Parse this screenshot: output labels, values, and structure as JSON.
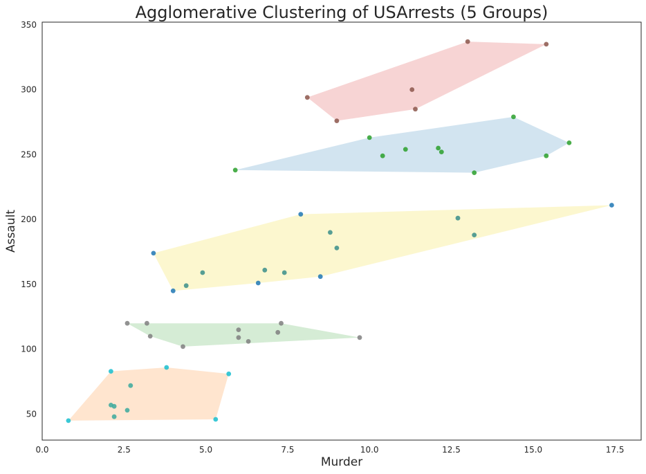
{
  "chart_data": {
    "type": "scatter",
    "title": "Agglomerative Clustering of USArrests (5 Groups)",
    "xlabel": "Murder",
    "ylabel": "Assault",
    "xlim": [
      0,
      18.3
    ],
    "ylim": [
      30,
      352
    ],
    "xticks": [
      0.0,
      2.5,
      5.0,
      7.5,
      10.0,
      12.5,
      15.0,
      17.5
    ],
    "xtick_labels": [
      "0.0",
      "2.5",
      "5.0",
      "7.5",
      "10.0",
      "12.5",
      "15.0",
      "17.5"
    ],
    "yticks": [
      50,
      100,
      150,
      200,
      250,
      300,
      350
    ],
    "ytick_labels": [
      "50",
      "100",
      "150",
      "200",
      "250",
      "300",
      "350"
    ],
    "grid": false,
    "hull_opacity": 0.2,
    "point_opacity": 0.85,
    "series": [
      {
        "hull_color": "#d62728",
        "points": [
          {
            "x": 13.0,
            "y": 337,
            "color": "#8c564b"
          },
          {
            "x": 15.4,
            "y": 335,
            "color": "#8c564b"
          },
          {
            "x": 11.3,
            "y": 300,
            "color": "#8c564b"
          },
          {
            "x": 8.1,
            "y": 294,
            "color": "#8c564b"
          },
          {
            "x": 11.4,
            "y": 285,
            "color": "#8c564b"
          },
          {
            "x": 9.0,
            "y": 276,
            "color": "#8c564b"
          }
        ]
      },
      {
        "hull_color": "#1f77b4",
        "points": [
          {
            "x": 14.4,
            "y": 279,
            "color": "#2ca02c"
          },
          {
            "x": 10.0,
            "y": 263,
            "color": "#2ca02c"
          },
          {
            "x": 16.1,
            "y": 259,
            "color": "#2ca02c"
          },
          {
            "x": 12.1,
            "y": 255,
            "color": "#2ca02c"
          },
          {
            "x": 11.1,
            "y": 254,
            "color": "#2ca02c"
          },
          {
            "x": 12.2,
            "y": 252,
            "color": "#2ca02c"
          },
          {
            "x": 10.4,
            "y": 249,
            "color": "#2ca02c"
          },
          {
            "x": 15.4,
            "y": 249,
            "color": "#2ca02c"
          },
          {
            "x": 5.9,
            "y": 238,
            "color": "#2ca02c"
          },
          {
            "x": 13.2,
            "y": 236,
            "color": "#2ca02c"
          }
        ]
      },
      {
        "hull_color": "#f2d50f",
        "points": [
          {
            "x": 17.4,
            "y": 211,
            "color": "#1f77b4"
          },
          {
            "x": 7.9,
            "y": 204,
            "color": "#1f77b4"
          },
          {
            "x": 12.7,
            "y": 201,
            "color": "#3a8e8a"
          },
          {
            "x": 8.8,
            "y": 190,
            "color": "#3a8e8a"
          },
          {
            "x": 13.2,
            "y": 188,
            "color": "#3a8e8a"
          },
          {
            "x": 9.0,
            "y": 178,
            "color": "#3a8e8a"
          },
          {
            "x": 3.4,
            "y": 174,
            "color": "#1f77b4"
          },
          {
            "x": 6.8,
            "y": 161,
            "color": "#3a8e8a"
          },
          {
            "x": 4.9,
            "y": 159,
            "color": "#3a8e8a"
          },
          {
            "x": 7.4,
            "y": 159,
            "color": "#3a8e8a"
          },
          {
            "x": 8.5,
            "y": 156,
            "color": "#1f77b4"
          },
          {
            "x": 6.6,
            "y": 151,
            "color": "#1f77b4"
          },
          {
            "x": 4.4,
            "y": 149,
            "color": "#3a8e8a"
          },
          {
            "x": 4.0,
            "y": 145,
            "color": "#1f77b4"
          }
        ]
      },
      {
        "hull_color": "#2ca02c",
        "points": [
          {
            "x": 2.6,
            "y": 120,
            "color": "#7f7f7f"
          },
          {
            "x": 3.2,
            "y": 120,
            "color": "#7f7f7f"
          },
          {
            "x": 7.3,
            "y": 120,
            "color": "#7f7f7f"
          },
          {
            "x": 6.0,
            "y": 115,
            "color": "#7f7f7f"
          },
          {
            "x": 7.2,
            "y": 113,
            "color": "#7f7f7f"
          },
          {
            "x": 3.3,
            "y": 110,
            "color": "#7f7f7f"
          },
          {
            "x": 6.0,
            "y": 109,
            "color": "#7f7f7f"
          },
          {
            "x": 9.7,
            "y": 109,
            "color": "#7f7f7f"
          },
          {
            "x": 6.3,
            "y": 106,
            "color": "#7f7f7f"
          },
          {
            "x": 4.3,
            "y": 102,
            "color": "#7f7f7f"
          }
        ]
      },
      {
        "hull_color": "#ff7f0e",
        "points": [
          {
            "x": 3.8,
            "y": 86,
            "color": "#17becf"
          },
          {
            "x": 2.1,
            "y": 83,
            "color": "#17becf"
          },
          {
            "x": 5.7,
            "y": 81,
            "color": "#17becf"
          },
          {
            "x": 2.7,
            "y": 72,
            "color": "#3ba99c"
          },
          {
            "x": 2.1,
            "y": 57,
            "color": "#3ba99c"
          },
          {
            "x": 2.2,
            "y": 56,
            "color": "#3ba99c"
          },
          {
            "x": 2.6,
            "y": 53,
            "color": "#3ba99c"
          },
          {
            "x": 2.2,
            "y": 48,
            "color": "#3ba99c"
          },
          {
            "x": 0.8,
            "y": 45,
            "color": "#17becf"
          },
          {
            "x": 5.3,
            "y": 46,
            "color": "#17becf"
          }
        ]
      }
    ]
  }
}
